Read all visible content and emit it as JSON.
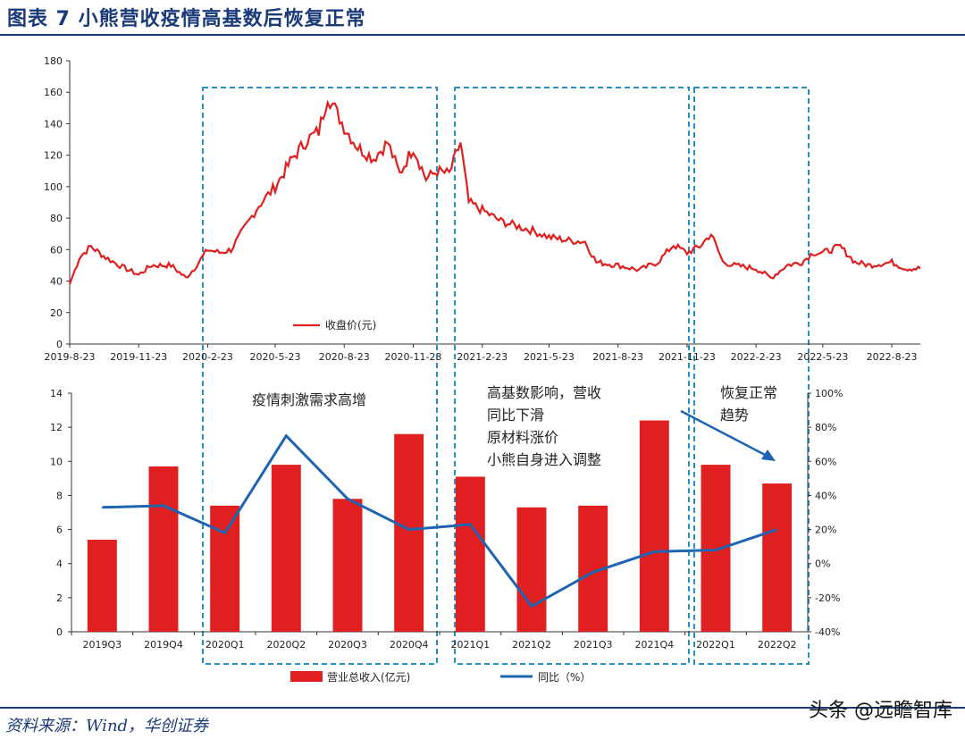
{
  "title": "图表 7  小熊营收疫情高基数后恢复正常",
  "source": "资料来源：Wind，华创证券",
  "watermark": "头条 @远瞻智库",
  "colors": {
    "bar": "#e02020",
    "price": "#e02020",
    "yoy": "#1f64b3",
    "box": "#2a8fc0",
    "title": "#1a3a78"
  },
  "chart_data": [
    {
      "type": "line",
      "legend": {
        "label": "收盘价(元)",
        "placement": "bottom-left"
      },
      "ylim": [
        0,
        180
      ],
      "yticks": [
        0,
        20,
        40,
        60,
        80,
        100,
        120,
        140,
        160,
        180
      ],
      "xticklabels": [
        "2019-8-23",
        "2019-11-23",
        "2020-2-23",
        "2020-5-23",
        "2020-8-23",
        "2020-11-23",
        "2021-2-23",
        "2021-5-23",
        "2021-8-23",
        "2021-11-23",
        "2022-2-23",
        "2022-5-23",
        "2022-8-23"
      ],
      "series": [
        {
          "name": "收盘价(元)",
          "x": [
            "2019-08-23",
            "2019-09-05",
            "2019-09-20",
            "2019-10-10",
            "2019-11-01",
            "2019-11-23",
            "2019-12-10",
            "2020-01-05",
            "2020-01-25",
            "2020-02-05",
            "2020-02-23",
            "2020-03-10",
            "2020-03-25",
            "2020-04-10",
            "2020-05-01",
            "2020-05-23",
            "2020-06-15",
            "2020-07-05",
            "2020-07-20",
            "2020-08-01",
            "2020-08-23",
            "2020-09-10",
            "2020-10-01",
            "2020-10-20",
            "2020-11-05",
            "2020-11-23",
            "2020-12-10",
            "2020-12-25",
            "2021-01-10",
            "2021-01-25",
            "2021-02-05",
            "2021-02-23",
            "2021-03-20",
            "2021-04-10",
            "2021-05-01",
            "2021-05-23",
            "2021-06-15",
            "2021-07-10",
            "2021-07-25",
            "2021-08-23",
            "2021-09-20",
            "2021-10-15",
            "2021-11-05",
            "2021-11-23",
            "2021-12-10",
            "2021-12-25",
            "2022-01-10",
            "2022-01-25",
            "2022-02-23",
            "2022-03-15",
            "2022-04-05",
            "2022-04-25",
            "2022-05-10",
            "2022-05-23",
            "2022-06-15",
            "2022-07-05",
            "2022-07-25",
            "2022-08-23",
            "2022-09-10",
            "2022-09-30"
          ],
          "y": [
            38,
            55,
            62,
            55,
            49,
            44,
            50,
            50,
            42,
            48,
            60,
            58,
            60,
            72,
            88,
            100,
            118,
            130,
            135,
            158,
            138,
            125,
            118,
            128,
            108,
            125,
            105,
            110,
            108,
            128,
            90,
            85,
            78,
            75,
            72,
            68,
            66,
            65,
            52,
            50,
            47,
            52,
            63,
            58,
            62,
            70,
            52,
            50,
            48,
            42,
            50,
            52,
            58,
            58,
            62,
            52,
            50,
            52,
            48,
            48
          ]
        }
      ]
    },
    {
      "type": "bar",
      "categories": [
        "2019Q3",
        "2019Q4",
        "2020Q1",
        "2020Q2",
        "2020Q3",
        "2020Q4",
        "2021Q1",
        "2021Q2",
        "2021Q3",
        "2021Q4",
        "2022Q1",
        "2022Q2"
      ],
      "series": [
        {
          "name": "营业总收入(亿元)",
          "axis": "left",
          "values": [
            5.4,
            9.7,
            7.4,
            9.8,
            7.8,
            11.6,
            9.1,
            7.3,
            7.4,
            12.4,
            9.8,
            8.7
          ]
        },
        {
          "name": "同比（%）",
          "axis": "right",
          "type": "line",
          "values": [
            33,
            34,
            18,
            75,
            38,
            20,
            23,
            -25,
            -5,
            7,
            8,
            20
          ]
        }
      ],
      "ylim": [
        0,
        14
      ],
      "yticks": [
        0,
        2,
        4,
        6,
        8,
        10,
        12,
        14
      ],
      "y2lim": [
        -40,
        100
      ],
      "y2ticks": [
        "-40%",
        "-20%",
        "0%",
        "20%",
        "40%",
        "60%",
        "80%",
        "100%"
      ],
      "legend": {
        "bar_label": "营业总收入(亿元)",
        "line_label": "同比（%）",
        "placement": "bottom"
      },
      "annotations": {
        "a1": "疫情刺激需求高增",
        "a2_l1": "高基数影响，营收",
        "a2_l2": "同比下滑",
        "a2_l3": "原材料涨价",
        "a2_l4": "小熊自身进入调整",
        "a3_l1": "恢复正常",
        "a3_l2": "趋势"
      }
    }
  ]
}
